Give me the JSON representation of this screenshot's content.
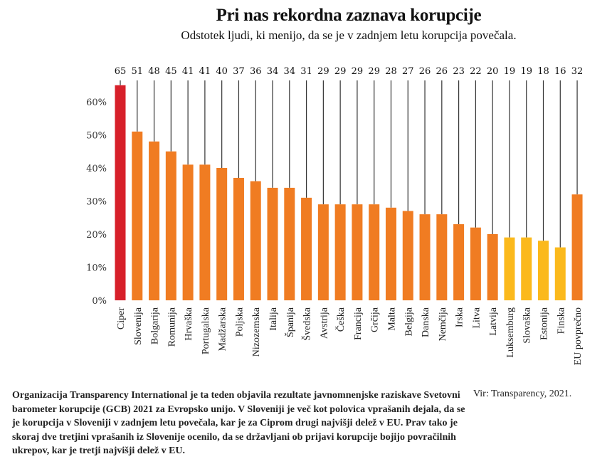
{
  "header": {
    "title": "Pri nas rekordna zaznava korupcije",
    "subtitle": "Odstotek ljudi, ki menijo, da se je v zadnjem letu korupcija povečala."
  },
  "footer": {
    "note": "Organizacija Transparency International je ta teden objavila rezultate javnomnenjske raziskave Svetovni barometer korupcije (GCB) 2021 za Evropsko unijo. V Sloveniji je več kot polovica vprašanih dejala, da se je korupcija v Sloveniji v zadnjem letu povečala, kar je za Ciprom drugi najvišji delež v EU. Prav tako je skoraj dve tretjini vprašanih iz Slovenije ocenilo, da se državljani ob prijavi korupcije bojijo povračilnih ukrepov, kar je tretji najvišji delež v EU.",
    "source": "Vir: Transparency, 2021."
  },
  "chart_data": {
    "type": "bar",
    "title": "Pri nas rekordna zaznava korupcije",
    "subtitle": "Odstotek ljudi, ki menijo, da se je v zadnjem letu korupcija povečala.",
    "xlabel": "",
    "ylabel": "",
    "ylim": [
      0,
      65
    ],
    "yticks": [
      0,
      10,
      20,
      30,
      40,
      50,
      60
    ],
    "ytick_labels": [
      "0%",
      "10%",
      "20%",
      "30%",
      "40%",
      "50%",
      "60%"
    ],
    "grid": false,
    "categories": [
      "Ciper",
      "Slovenija",
      "Bolgarija",
      "Romunija",
      "Hrvaška",
      "Portugalska",
      "Madžarska",
      "Poljska",
      "Nizozemska",
      "Italija",
      "Španija",
      "Švedska",
      "Avstrija",
      "Češka",
      "Francija",
      "Grčija",
      "Malta",
      "Belgija",
      "Danska",
      "Nemčija",
      "Irska",
      "Litva",
      "Latvija",
      "Luksemburg",
      "Slovaška",
      "Estonija",
      "Finska",
      "EU povprečno"
    ],
    "values": [
      65,
      51,
      48,
      45,
      41,
      41,
      40,
      37,
      36,
      34,
      34,
      31,
      29,
      29,
      29,
      29,
      28,
      27,
      26,
      26,
      23,
      22,
      20,
      19,
      19,
      18,
      16,
      32
    ],
    "value_labels": [
      "65",
      "51",
      "48",
      "45",
      "41",
      "41",
      "40",
      "37",
      "36",
      "34",
      "34",
      "31",
      "29",
      "29",
      "29",
      "29",
      "28",
      "27",
      "26",
      "26",
      "23",
      "22",
      "20",
      "19",
      "19",
      "18",
      "16",
      "32"
    ],
    "color_groups": [
      "highlight",
      "high",
      "high",
      "high",
      "high",
      "high",
      "high",
      "high",
      "high",
      "high",
      "high",
      "high",
      "high",
      "high",
      "high",
      "high",
      "high",
      "high",
      "high",
      "high",
      "high",
      "high",
      "high",
      "low",
      "low",
      "low",
      "low",
      "high"
    ],
    "colors": {
      "highlight": "#d7202a",
      "high": "#f07c22",
      "low": "#fbb91c",
      "leader_line": "#333333"
    }
  }
}
